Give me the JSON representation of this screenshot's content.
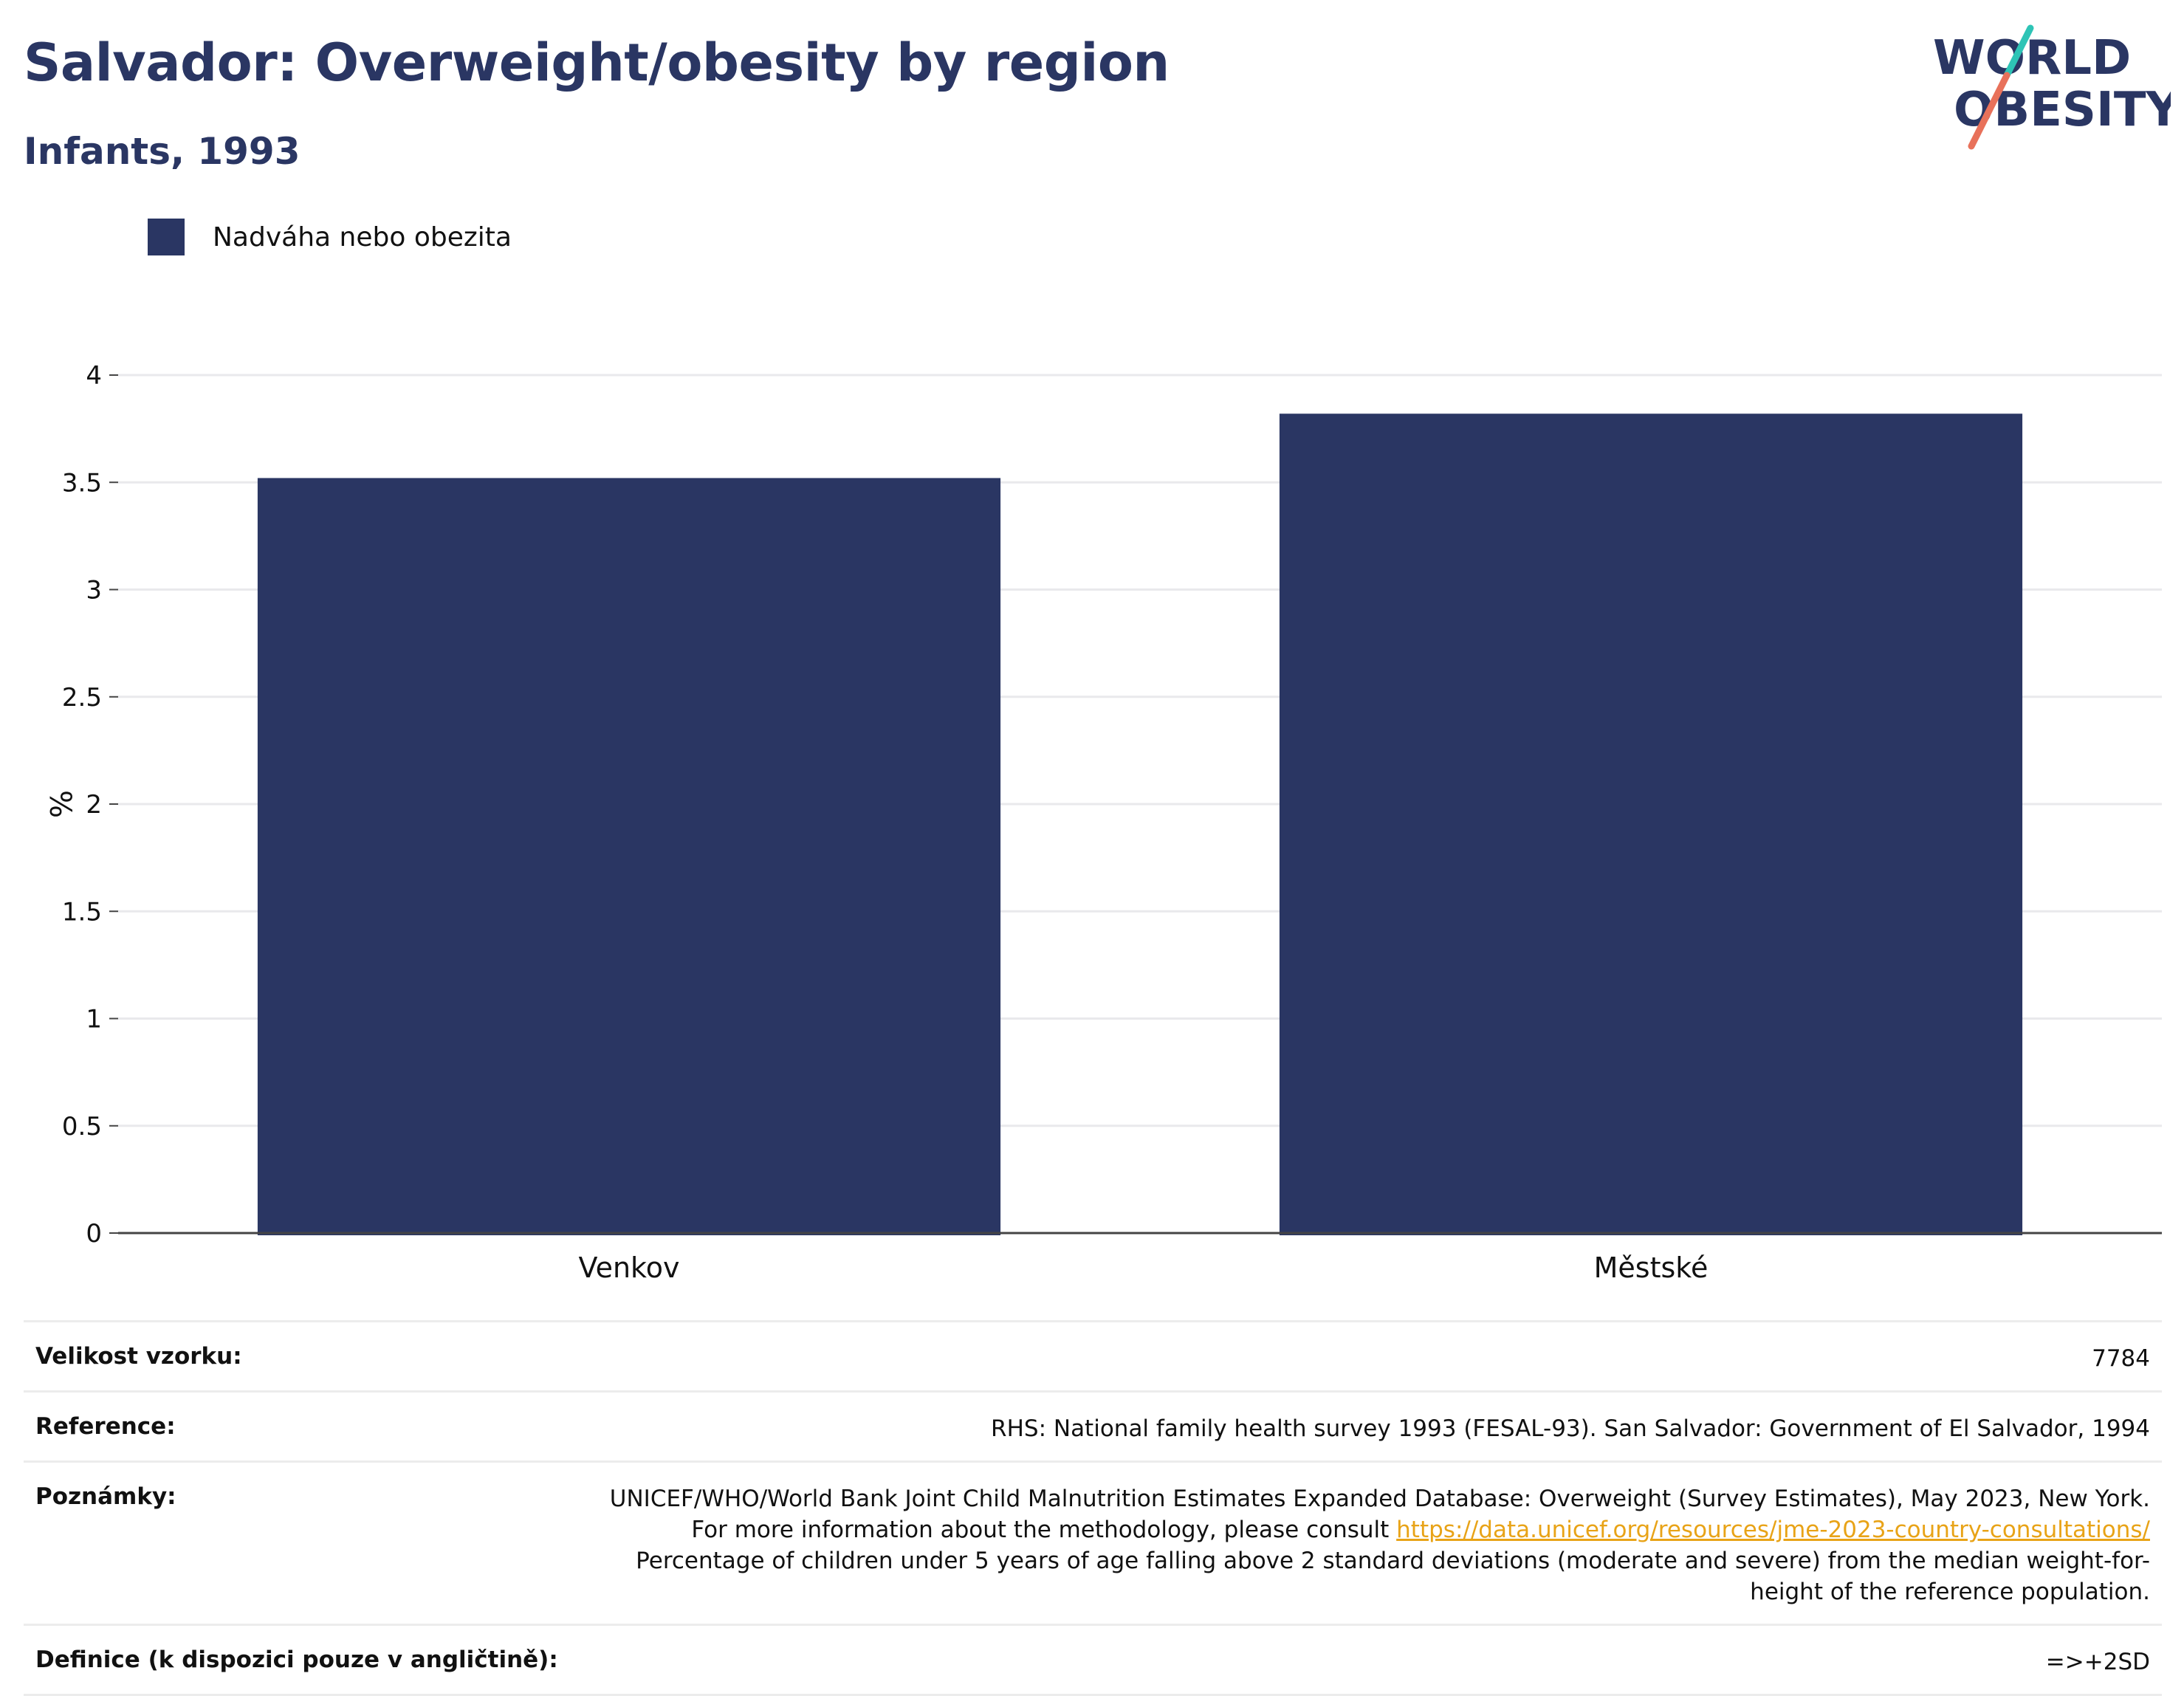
{
  "header": {
    "title": "Salvador: Overweight/obesity by region",
    "subtitle": "Infants, 1993"
  },
  "logo": {
    "line1": "WORLD",
    "line2": "OBESITY",
    "colors": {
      "text": "#2a3663",
      "accent_teal": "#2ec4b6",
      "accent_coral": "#e8715a"
    }
  },
  "legend": {
    "items": [
      {
        "label": "Nadváha nebo obezita",
        "color": "#2a3663"
      }
    ],
    "placement": "top-left"
  },
  "chart_data": {
    "type": "bar",
    "categories": [
      "Venkov",
      "Městské"
    ],
    "series": [
      {
        "name": "Nadváha nebo obezita",
        "values": [
          3.52,
          3.82
        ],
        "color": "#2a3663"
      }
    ],
    "ylabel": "%",
    "ylim": [
      0,
      4
    ],
    "yticks": [
      0,
      0.5,
      1,
      1.5,
      2,
      2.5,
      3,
      3.5,
      4
    ],
    "ytick_labels": [
      "0",
      "0.5",
      "1",
      "1.5",
      "2",
      "2.5",
      "3",
      "3.5",
      "4"
    ],
    "grid": true
  },
  "info": {
    "sample_size": {
      "label": "Velikost vzorku:",
      "value": "7784"
    },
    "reference": {
      "label": "Reference:",
      "value": "RHS: National family health survey 1993 (FESAL-93). San Salvador: Government of El Salvador, 1994"
    },
    "notes": {
      "label": "Poznámky:",
      "text1": "UNICEF/WHO/World Bank Joint Child Malnutrition Estimates Expanded Database: Overweight (Survey Estimates), May 2023, New York. For more information about the methodology, please consult ",
      "link": "https://data.unicef.org/resources/jme-2023-country-consultations/",
      "text2": "Percentage of children under 5 years of age falling above 2 standard deviations (moderate and severe) from the median weight-for-height of the reference population."
    },
    "definition": {
      "label": "Definice (k dispozici pouze v angličtině):",
      "value": "=>+2SD"
    }
  }
}
